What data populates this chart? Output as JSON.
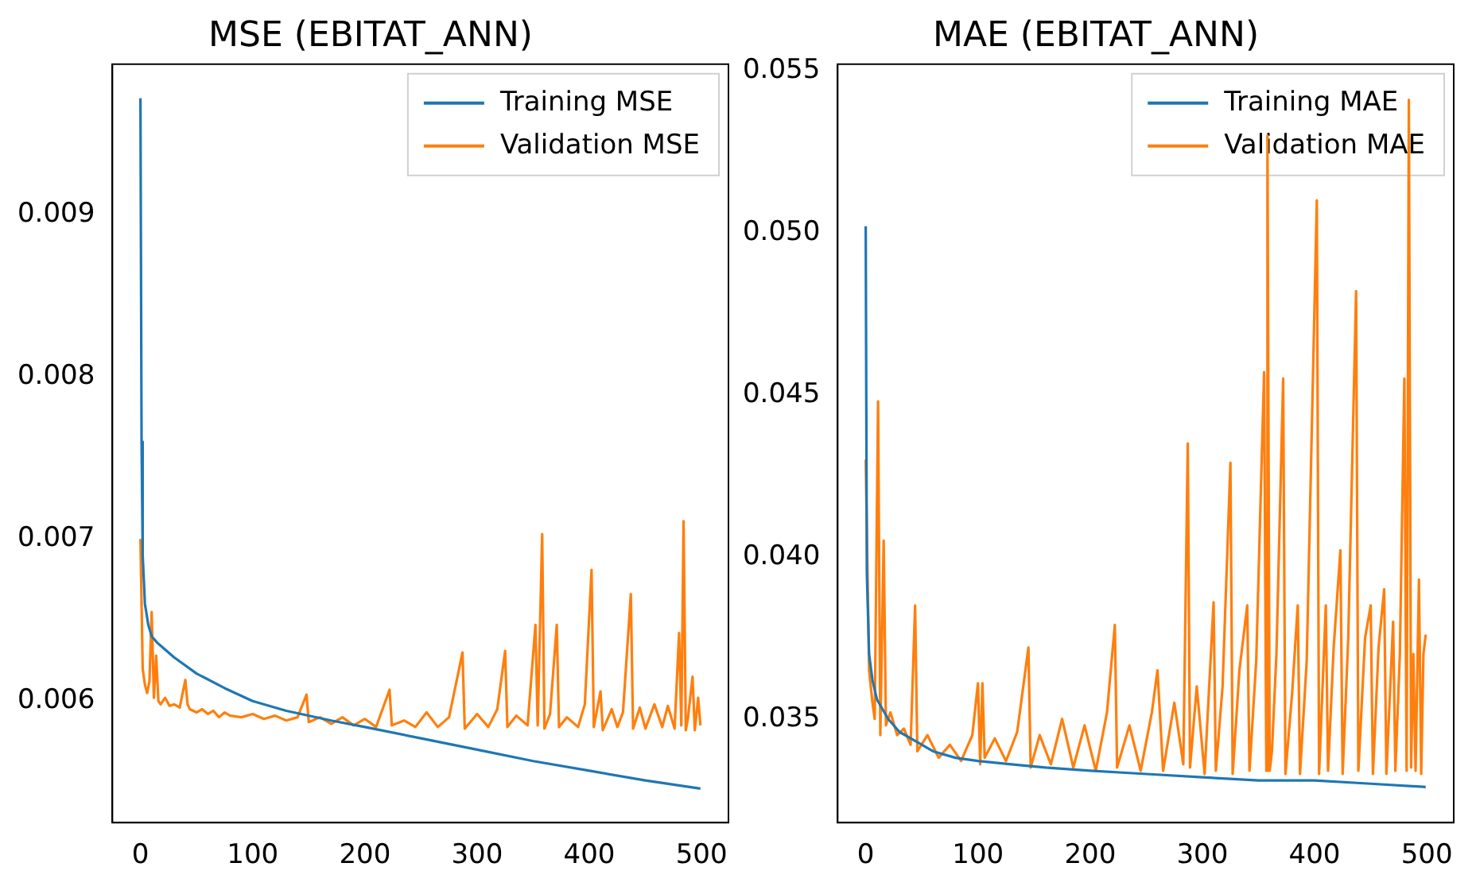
{
  "chart_data": [
    {
      "type": "line",
      "title": "MSE (EBITAT_ANN)",
      "legend": "top right",
      "grid": false,
      "xlim": [
        -25,
        524
      ],
      "xticks": [
        0,
        100,
        200,
        300,
        400,
        500
      ],
      "ylim": [
        0.00525,
        0.00993
      ],
      "yticks": [
        {
          "value": 0.006,
          "label": "0.006"
        },
        {
          "value": 0.007,
          "label": "0.007"
        },
        {
          "value": 0.008,
          "label": "0.008"
        },
        {
          "value": 0.009,
          "label": "0.009"
        }
      ],
      "series": [
        {
          "name": "Training MSE",
          "color": "#1f77b4",
          "x": [
            0,
            1,
            2,
            4,
            7,
            10,
            15,
            20,
            30,
            50,
            75,
            100,
            130,
            170,
            200,
            250,
            300,
            350,
            400,
            450,
            499
          ],
          "values": [
            0.00972,
            0.0076,
            0.0069,
            0.0066,
            0.00647,
            0.0064,
            0.00636,
            0.00633,
            0.00627,
            0.00617,
            0.00608,
            0.006,
            0.00594,
            0.00588,
            0.00584,
            0.00577,
            0.0057,
            0.00563,
            0.00557,
            0.00551,
            0.00546
          ]
        },
        {
          "name": "Validation MSE",
          "color": "#ff7f0e",
          "x": [
            0,
            2,
            4,
            6,
            8,
            10,
            12,
            14,
            16,
            18,
            22,
            26,
            30,
            35,
            40,
            42,
            44,
            50,
            55,
            60,
            65,
            70,
            75,
            80,
            90,
            100,
            110,
            120,
            130,
            140,
            148,
            150,
            160,
            170,
            180,
            190,
            200,
            210,
            222,
            224,
            235,
            245,
            255,
            265,
            275,
            287,
            289,
            300,
            310,
            318,
            325,
            327,
            335,
            345,
            352,
            354,
            358,
            360,
            365,
            371,
            373,
            380,
            390,
            396,
            402,
            404,
            410,
            412,
            420,
            425,
            430,
            437,
            439,
            445,
            450,
            458,
            465,
            470,
            476,
            480,
            482,
            484,
            486,
            488,
            492,
            494,
            497,
            499
          ],
          "values": [
            0.007,
            0.0062,
            0.0061,
            0.00605,
            0.00612,
            0.00655,
            0.00602,
            0.00628,
            0.006,
            0.00598,
            0.00602,
            0.00597,
            0.00598,
            0.00596,
            0.00613,
            0.00598,
            0.00595,
            0.00593,
            0.00595,
            0.00592,
            0.00594,
            0.0059,
            0.00593,
            0.00591,
            0.0059,
            0.00592,
            0.00589,
            0.00591,
            0.00588,
            0.0059,
            0.00604,
            0.00587,
            0.0059,
            0.00586,
            0.0059,
            0.00585,
            0.00589,
            0.00584,
            0.00607,
            0.00585,
            0.00588,
            0.00584,
            0.00593,
            0.00584,
            0.0059,
            0.0063,
            0.00583,
            0.00592,
            0.00584,
            0.00595,
            0.00631,
            0.00584,
            0.00591,
            0.00585,
            0.00647,
            0.00585,
            0.00703,
            0.00583,
            0.00592,
            0.00647,
            0.00584,
            0.0059,
            0.00584,
            0.00598,
            0.00681,
            0.00584,
            0.00606,
            0.00582,
            0.00595,
            0.00584,
            0.00593,
            0.00666,
            0.00583,
            0.00596,
            0.00583,
            0.00598,
            0.00584,
            0.00597,
            0.00583,
            0.00642,
            0.00585,
            0.00711,
            0.00582,
            0.0059,
            0.00615,
            0.00582,
            0.00602,
            0.00585
          ]
        }
      ]
    },
    {
      "type": "line",
      "title": "MAE (EBITAT_ANN)",
      "legend": "top right",
      "grid": false,
      "xlim": [
        -25,
        524
      ],
      "xticks": [
        0,
        100,
        200,
        300,
        400,
        500
      ],
      "ylim": [
        0.0318,
        0.0552
      ],
      "yticks": [
        {
          "value": 0.035,
          "label": "0.035"
        },
        {
          "value": 0.04,
          "label": "0.040"
        },
        {
          "value": 0.045,
          "label": "0.045"
        },
        {
          "value": 0.05,
          "label": "0.050"
        },
        {
          "value": 0.055,
          "label": "0.055"
        }
      ],
      "series": [
        {
          "name": "Training MAE",
          "color": "#1f77b4",
          "x": [
            0,
            1,
            3,
            6,
            10,
            20,
            30,
            45,
            60,
            80,
            100,
            130,
            160,
            200,
            250,
            300,
            350,
            400,
            450,
            499
          ],
          "values": [
            0.0502,
            0.0395,
            0.037,
            0.0362,
            0.0356,
            0.035,
            0.0346,
            0.0343,
            0.034,
            0.0338,
            0.0337,
            0.0336,
            0.0335,
            0.0334,
            0.0333,
            0.0332,
            0.0331,
            0.0331,
            0.033,
            0.0329
          ]
        },
        {
          "name": "Validation MAE",
          "color": "#ff7f0e",
          "x": [
            0,
            3,
            6,
            8,
            11,
            13,
            16,
            18,
            22,
            28,
            34,
            40,
            44,
            46,
            55,
            65,
            75,
            85,
            95,
            100,
            102,
            104,
            106,
            115,
            125,
            135,
            145,
            147,
            155,
            165,
            175,
            185,
            195,
            205,
            215,
            222,
            224,
            235,
            245,
            255,
            260,
            265,
            275,
            283,
            287,
            289,
            295,
            302,
            310,
            312,
            318,
            325,
            327,
            333,
            340,
            342,
            348,
            355,
            357,
            358,
            360,
            362,
            366,
            372,
            374,
            380,
            385,
            387,
            393,
            402,
            404,
            410,
            412,
            417,
            423,
            425,
            430,
            437,
            439,
            445,
            450,
            452,
            457,
            462,
            464,
            470,
            472,
            476,
            480,
            482,
            484,
            486,
            488,
            490,
            493,
            495,
            497,
            499
          ],
          "values": [
            0.043,
            0.0365,
            0.0355,
            0.035,
            0.0448,
            0.0345,
            0.0405,
            0.0348,
            0.0352,
            0.0345,
            0.0347,
            0.0342,
            0.0385,
            0.034,
            0.0345,
            0.0338,
            0.0342,
            0.0337,
            0.0345,
            0.0361,
            0.0336,
            0.0361,
            0.0338,
            0.0344,
            0.0337,
            0.0346,
            0.0372,
            0.0335,
            0.0345,
            0.0336,
            0.035,
            0.0335,
            0.0348,
            0.0334,
            0.0352,
            0.0379,
            0.0335,
            0.0348,
            0.0334,
            0.0352,
            0.0365,
            0.0334,
            0.0355,
            0.0336,
            0.0435,
            0.0335,
            0.036,
            0.0333,
            0.0386,
            0.0334,
            0.036,
            0.0429,
            0.0333,
            0.0365,
            0.0385,
            0.0334,
            0.0368,
            0.0457,
            0.0334,
            0.053,
            0.0334,
            0.034,
            0.037,
            0.0455,
            0.0333,
            0.0358,
            0.0385,
            0.0333,
            0.0368,
            0.051,
            0.0333,
            0.0385,
            0.0334,
            0.0372,
            0.0402,
            0.0333,
            0.0375,
            0.0482,
            0.0334,
            0.0375,
            0.0385,
            0.0333,
            0.0372,
            0.039,
            0.0333,
            0.038,
            0.0334,
            0.037,
            0.0455,
            0.0334,
            0.0541,
            0.0335,
            0.037,
            0.0334,
            0.0393,
            0.0333,
            0.037,
            0.0376
          ]
        }
      ]
    }
  ]
}
